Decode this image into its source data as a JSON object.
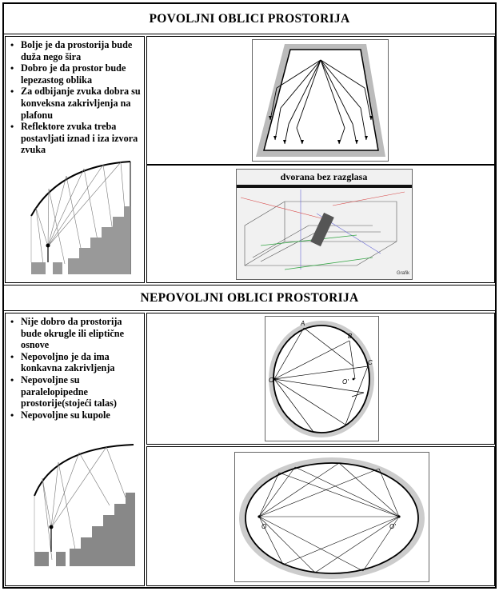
{
  "sections": {
    "favorable": {
      "title": "POVOLJNI OBLICI PROSTORIJA",
      "bullets": [
        "Bolje je da prostorija bude duža nego šira",
        "Dobro je da prostor bude lepezastog oblika",
        "Za odbijanje zvuka dobra su konveksna zakrivljenja na plafonu",
        "Reflektore zvuka treba postavljati iznad i iza izvora zvuka"
      ],
      "hall_caption": "dvorana bez razglasa",
      "hall_watermark": "Grafik"
    },
    "unfavorable": {
      "title": "NEPOVOLJNI OBLICI PROSTORIJA",
      "bullets": [
        "Nije dobro da prostorija bude okrugle ili eliptične osnove",
        "Nepovoljno je da ima konkavna zakrivljenja",
        "Nepovoljne su paralelopipedne prostorije(stojeći talas)",
        "Nepovoljne su kupole"
      ],
      "circle_labels": {
        "a": "A",
        "b": "B",
        "c": "C",
        "o": "O",
        "o_prime": "O'"
      },
      "ellipse_labels": {
        "o": "O",
        "o_prime": "O'"
      }
    }
  }
}
